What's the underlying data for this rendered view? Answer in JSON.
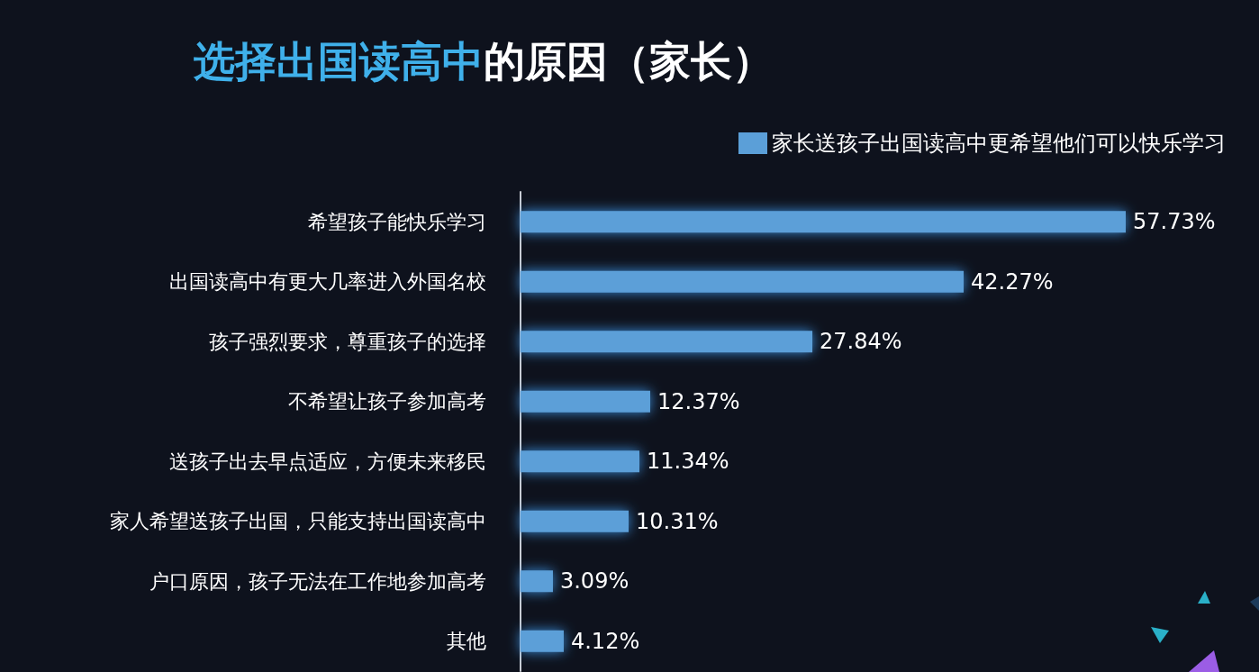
{
  "chart_data": {
    "type": "bar",
    "orientation": "horizontal",
    "title": "选择出国读高中的原因（家长）",
    "categories": [
      "希望孩子能快乐学习",
      "出国读高中有更大几率进入外国名校",
      "孩子强烈要求，尊重孩子的选择",
      "不希望让孩子参加高考",
      "送孩子出去早点适应，方便未来移民",
      "家人希望送孩子出国，只能支持出国读高中",
      "户口原因，孩子无法在工作地参加高考",
      "其他"
    ],
    "series": [
      {
        "name": "家长送孩子出国读高中更希望他们可以快乐学习",
        "color": "#5b9fd8",
        "values": [
          57.73,
          42.27,
          27.84,
          12.37,
          11.34,
          10.31,
          3.09,
          4.12
        ],
        "value_labels": [
          "57.73%",
          "42.27%",
          "27.84%",
          "12.37%",
          "11.34%",
          "10.31%",
          "3.09%",
          "4.12%"
        ]
      }
    ],
    "legend": "top right",
    "grid": false
  }
}
